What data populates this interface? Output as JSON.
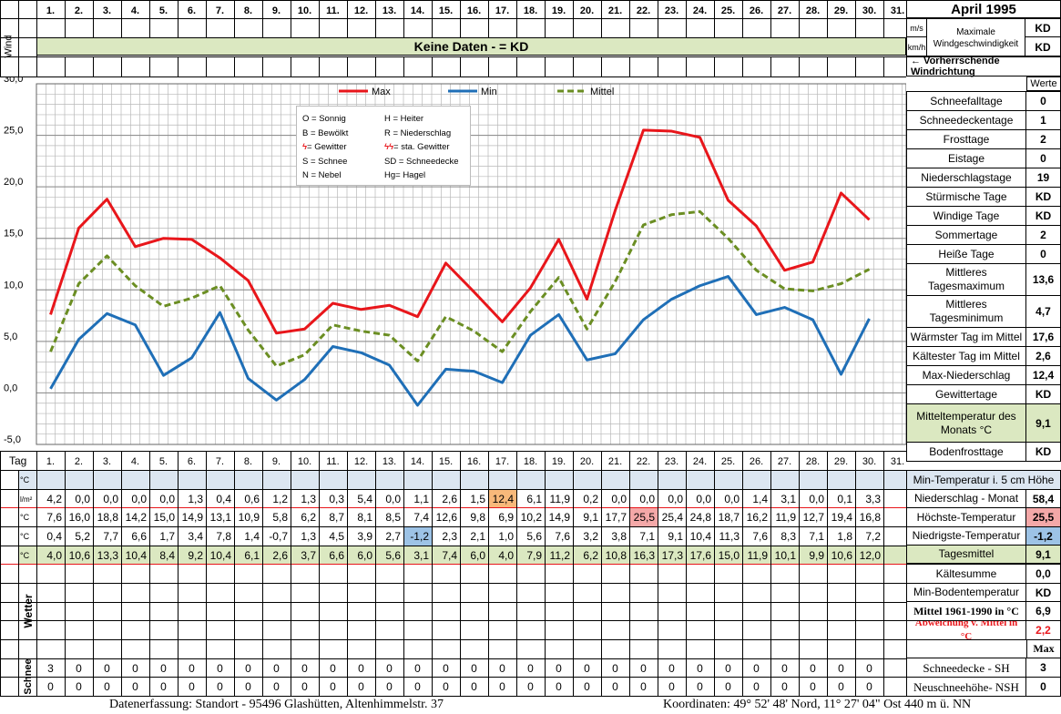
{
  "header": {
    "title": "April 1995",
    "wind_label": "Wind",
    "wind_banner": "Keine Daten -  = KD"
  },
  "days_header": [
    "1.",
    "2.",
    "3.",
    "4.",
    "5.",
    "6.",
    "7.",
    "8.",
    "9.",
    "10.",
    "11.",
    "12.",
    "13.",
    "14.",
    "15.",
    "16.",
    "17.",
    "18.",
    "19.",
    "20.",
    "21.",
    "22.",
    "23.",
    "24.",
    "25.",
    "26.",
    "27.",
    "28.",
    "29.",
    "30.",
    "31."
  ],
  "wind_panel": {
    "unit_ms": "m/s",
    "unit_kmh": "km/h",
    "max_label_1": "Maximale",
    "max_label_2": "Windgeschwindigkeit",
    "val_ms": "KD",
    "val_kmh": "KD",
    "direction": "← Vorherrschende Windrichtung",
    "werte": "Werte"
  },
  "legend": {
    "max": "Max",
    "min": "Min",
    "mittel": "Mittel"
  },
  "weather_key": [
    [
      "O = Sonnig",
      "H = Heiter"
    ],
    [
      "B = Bewölkt",
      "R = Niederschlag"
    ],
    [
      "= Gewitter",
      "= sta. Gewitter"
    ],
    [
      "S = Schnee",
      "SD = Schneedecke"
    ],
    [
      "N = Nebel",
      "Hg= Hagel"
    ]
  ],
  "chart_data": {
    "type": "line",
    "x": [
      1,
      2,
      3,
      4,
      5,
      6,
      7,
      8,
      9,
      10,
      11,
      12,
      13,
      14,
      15,
      16,
      17,
      18,
      19,
      20,
      21,
      22,
      23,
      24,
      25,
      26,
      27,
      28,
      29,
      30
    ],
    "ylim": [
      -5,
      30
    ],
    "yticks": [
      "30,0",
      "25,0",
      "20,0",
      "15,0",
      "10,0",
      "5,0",
      "0,0",
      "-5,0"
    ],
    "grid": true,
    "legend_position": "top",
    "series": [
      {
        "name": "Max",
        "color": "#e8161b",
        "values": [
          7.6,
          16.0,
          18.8,
          14.2,
          15.0,
          14.9,
          13.1,
          10.9,
          5.8,
          6.2,
          8.7,
          8.1,
          8.5,
          7.4,
          12.6,
          9.8,
          6.9,
          10.2,
          14.9,
          9.1,
          17.7,
          25.5,
          25.4,
          24.8,
          18.7,
          16.2,
          11.9,
          12.7,
          19.4,
          16.8
        ]
      },
      {
        "name": "Min",
        "color": "#1f6fb7",
        "values": [
          0.4,
          5.2,
          7.7,
          6.6,
          1.7,
          3.4,
          7.8,
          1.4,
          -0.7,
          1.3,
          4.5,
          3.9,
          2.7,
          -1.2,
          2.3,
          2.1,
          1.0,
          5.6,
          7.6,
          3.2,
          3.8,
          7.1,
          9.1,
          10.4,
          11.3,
          7.6,
          8.3,
          7.1,
          1.8,
          7.2
        ]
      },
      {
        "name": "Mittel",
        "color": "#6b8e23",
        "values": [
          4.0,
          10.6,
          13.3,
          10.4,
          8.4,
          9.2,
          10.4,
          6.1,
          2.6,
          3.7,
          6.6,
          6.0,
          5.6,
          3.1,
          7.4,
          6.0,
          4.0,
          7.9,
          11.2,
          6.2,
          10.8,
          16.3,
          17.3,
          17.6,
          15.0,
          11.9,
          10.1,
          9.9,
          10.6,
          12.0
        ]
      }
    ]
  },
  "table": {
    "tag_label": "Tag",
    "unit_c": "°C",
    "unit_lm2": "l/m²",
    "niederschlag": [
      "4,2",
      "0,0",
      "0,0",
      "0,0",
      "0,0",
      "1,3",
      "0,4",
      "0,6",
      "1,2",
      "1,3",
      "0,3",
      "5,4",
      "0,0",
      "1,1",
      "2,6",
      "1,5",
      "12,4",
      "6,1",
      "11,9",
      "0,2",
      "0,0",
      "0,0",
      "0,0",
      "0,0",
      "0,0",
      "1,4",
      "3,1",
      "0,0",
      "0,1",
      "3,3",
      ""
    ],
    "max": [
      "7,6",
      "16,0",
      "18,8",
      "14,2",
      "15,0",
      "14,9",
      "13,1",
      "10,9",
      "5,8",
      "6,2",
      "8,7",
      "8,1",
      "8,5",
      "7,4",
      "12,6",
      "9,8",
      "6,9",
      "10,2",
      "14,9",
      "9,1",
      "17,7",
      "25,5",
      "25,4",
      "24,8",
      "18,7",
      "16,2",
      "11,9",
      "12,7",
      "19,4",
      "16,8",
      ""
    ],
    "min": [
      "0,4",
      "5,2",
      "7,7",
      "6,6",
      "1,7",
      "3,4",
      "7,8",
      "1,4",
      "-0,7",
      "1,3",
      "4,5",
      "3,9",
      "2,7",
      "-1,2",
      "2,3",
      "2,1",
      "1,0",
      "5,6",
      "7,6",
      "3,2",
      "3,8",
      "7,1",
      "9,1",
      "10,4",
      "11,3",
      "7,6",
      "8,3",
      "7,1",
      "1,8",
      "7,2",
      ""
    ],
    "mittel": [
      "4,0",
      "10,6",
      "13,3",
      "10,4",
      "8,4",
      "9,2",
      "10,4",
      "6,1",
      "2,6",
      "3,7",
      "6,6",
      "6,0",
      "5,6",
      "3,1",
      "7,4",
      "6,0",
      "4,0",
      "7,9",
      "11,2",
      "6,2",
      "10,8",
      "16,3",
      "17,3",
      "17,6",
      "15,0",
      "11,9",
      "10,1",
      "9,9",
      "10,6",
      "12,0",
      ""
    ],
    "wetter_label": "Wetter",
    "schnee_label": "Schnee",
    "schnee_sh": [
      "3",
      "0",
      "0",
      "0",
      "0",
      "0",
      "0",
      "0",
      "0",
      "0",
      "0",
      "0",
      "0",
      "0",
      "0",
      "0",
      "0",
      "0",
      "0",
      "0",
      "0",
      "0",
      "0",
      "0",
      "0",
      "0",
      "0",
      "0",
      "0",
      "0",
      ""
    ],
    "schnee_nsh": [
      "0",
      "0",
      "0",
      "0",
      "0",
      "0",
      "0",
      "0",
      "0",
      "0",
      "0",
      "0",
      "0",
      "0",
      "0",
      "0",
      "0",
      "0",
      "0",
      "0",
      "0",
      "0",
      "0",
      "0",
      "0",
      "0",
      "0",
      "0",
      "0",
      "0",
      ""
    ]
  },
  "stats": [
    {
      "label": "Schneefalltage",
      "value": "0"
    },
    {
      "label": "Schneedeckentage",
      "value": "1"
    },
    {
      "label": "Frosttage",
      "value": "2"
    },
    {
      "label": "Eistage",
      "value": "0"
    },
    {
      "label": "Niederschlagstage",
      "value": "19"
    },
    {
      "label": "Stürmische Tage",
      "value": "KD"
    },
    {
      "label": "Windige Tage",
      "value": "KD"
    },
    {
      "label": "Sommertage",
      "value": "2"
    },
    {
      "label": "Heiße Tage",
      "value": "0"
    },
    {
      "label": "Mittleres Tagesmaximum",
      "value": "13,6"
    },
    {
      "label": "Mittleres Tagesminimum",
      "value": "4,7"
    },
    {
      "label": "Wärmster Tag im Mittel",
      "value": "17,6"
    },
    {
      "label": "Kältester Tag im Mittel",
      "value": "2,6"
    },
    {
      "label": "Max-Niederschlag",
      "value": "12,4"
    },
    {
      "label": "Gewittertage",
      "value": "KD"
    },
    {
      "label": "Mitteltemperatur des Monats °C",
      "value": "9,1"
    },
    {
      "label": "Bodenfrosttage",
      "value": "KD"
    }
  ],
  "lower_stats": {
    "min_temp_5cm": "Min-Temperatur i. 5 cm Höhe",
    "rows": [
      {
        "label": "Niederschlag - Monat",
        "value": "58,4"
      },
      {
        "label": "Höchste-Temperatur",
        "value": "25,5"
      },
      {
        "label": "Niedrigste-Temperatur",
        "value": "-1,2"
      },
      {
        "label": "Tagesmittel",
        "value": "9,1"
      },
      {
        "label": "Kältesumme",
        "value": "0,0"
      },
      {
        "label": "Min-Bodentemperatur",
        "value": "KD"
      },
      {
        "label": "Mittel 1961-1990 in °C",
        "value": "6,9"
      },
      {
        "label": "Abweichung v. Mittel in °C",
        "value": "2,2"
      }
    ],
    "max_label": "Max",
    "schnee_rows": [
      {
        "label": "Schneedecke -  SH",
        "value": "3"
      },
      {
        "label": "Neuschneehöhe- NSH",
        "value": "0"
      }
    ]
  },
  "footer": {
    "left": "Datenerfassung:  Standort -  95496  Glashütten, Altenhimmelstr. 37",
    "right": "Koordinaten:  49° 52' 48' Nord,  11° 27' 04\" Ost   440 m ü. NN"
  }
}
